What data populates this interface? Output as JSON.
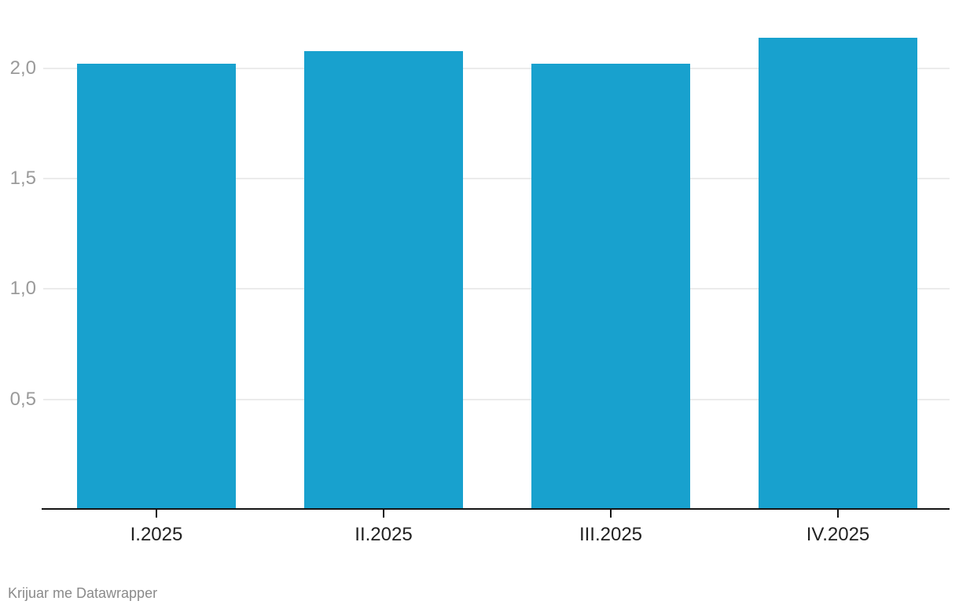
{
  "chart_data": {
    "type": "bar",
    "categories": [
      "I.2025",
      "II.2025",
      "III.2025",
      "IV.2025"
    ],
    "values": [
      2.02,
      2.08,
      2.02,
      2.14
    ],
    "title": "",
    "xlabel": "",
    "ylabel": "",
    "ylim": [
      0,
      2.31
    ],
    "yticks": [
      0.5,
      1.0,
      1.5,
      2.0
    ],
    "ytick_labels": [
      "0,5",
      "1,0",
      "1,5",
      "2,0"
    ],
    "grid": true,
    "legend": "none",
    "decimal_separator": ","
  },
  "footer": {
    "attribution": "Krijuar me Datawrapper"
  },
  "colors": {
    "bar": "#18a1ce",
    "grid": "#ebebeb",
    "axis": "#141414",
    "ytick_label": "#9a9a9a",
    "xtick_label": "#222222",
    "footer_text": "#8a8a8a",
    "background": "#ffffff"
  }
}
